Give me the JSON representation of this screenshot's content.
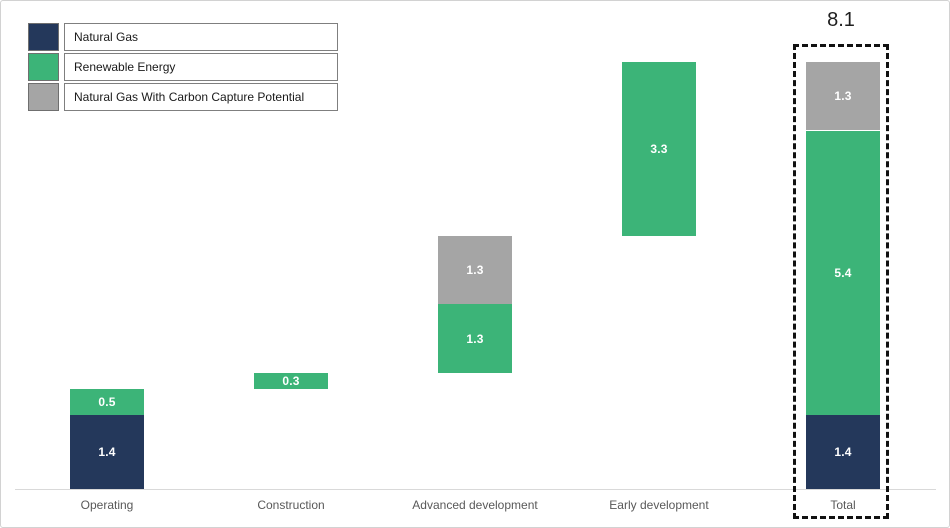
{
  "legend": {
    "items": [
      {
        "label": "Natural Gas",
        "color": "#24385B"
      },
      {
        "label": "Renewable Energy",
        "color": "#3CB478"
      },
      {
        "label": "Natural Gas With Carbon Capture Potential",
        "color": "#A5A5A5"
      }
    ]
  },
  "chart_data": {
    "type": "bar",
    "subtype": "stacked-waterfall",
    "title": "",
    "xlabel": "",
    "ylabel": "",
    "ylim": [
      0,
      8.1
    ],
    "grid": false,
    "legend_position": "top-left",
    "categories": [
      "Operating",
      "Construction",
      "Advanced development",
      "Early development",
      "Total"
    ],
    "series_colors": {
      "Natural Gas": "#24385B",
      "Renewable Energy": "#3CB478",
      "Natural Gas With Carbon Capture Potential": "#A5A5A5"
    },
    "bars": [
      {
        "category": "Operating",
        "start": 0,
        "highlighted": false,
        "segments": [
          {
            "series": "Natural Gas",
            "value": 1.4,
            "label": "1.4"
          },
          {
            "series": "Renewable Energy",
            "value": 0.5,
            "label": "0.5"
          }
        ]
      },
      {
        "category": "Construction",
        "start": 1.9,
        "highlighted": false,
        "segments": [
          {
            "series": "Renewable Energy",
            "value": 0.3,
            "label": "0.3"
          }
        ]
      },
      {
        "category": "Advanced development",
        "start": 2.2,
        "highlighted": false,
        "segments": [
          {
            "series": "Renewable Energy",
            "value": 1.3,
            "label": "1.3"
          },
          {
            "series": "Natural Gas With Carbon Capture Potential",
            "value": 1.3,
            "label": "1.3"
          }
        ]
      },
      {
        "category": "Early development",
        "start": 4.8,
        "highlighted": false,
        "segments": [
          {
            "series": "Renewable Energy",
            "value": 3.3,
            "label": "3.3"
          }
        ]
      },
      {
        "category": "Total",
        "start": 0,
        "highlighted": true,
        "segments": [
          {
            "series": "Natural Gas",
            "value": 1.4,
            "label": "1.4"
          },
          {
            "series": "Renewable Energy",
            "value": 5.4,
            "label": "5.4"
          },
          {
            "series": "Natural Gas With Carbon Capture Potential",
            "value": 1.3,
            "label": "1.3"
          }
        ]
      }
    ],
    "total_annotation": "8.1"
  }
}
